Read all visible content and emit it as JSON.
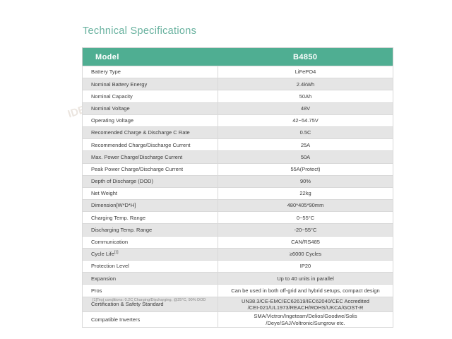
{
  "page": {
    "title": "Technical Specifications"
  },
  "colors": {
    "accent_green": "#4fae92",
    "title_teal": "#67b19e",
    "row_alt_gray": "#e5e5e5",
    "border_gray": "#d9d9d9",
    "text": "#3c3c3c"
  },
  "table": {
    "header": {
      "model_label": "Model",
      "model_value": "B4850"
    },
    "rows": [
      {
        "label": "Battery Type",
        "value": "LiFePO4"
      },
      {
        "label": "Nominal Battery Energy",
        "value": "2.4kWh"
      },
      {
        "label": "Nominal Capacity",
        "value": "50Ah"
      },
      {
        "label": "Nominal Voltage",
        "value": "48V"
      },
      {
        "label": "Operating Voltage",
        "value": "42~54.75V"
      },
      {
        "label": "Recomended Charge & Discharge C Rate",
        "value": "0.5C"
      },
      {
        "label": "Recommended Charge/Discharge Current",
        "value": "25A"
      },
      {
        "label": "Max. Power Charge/Discharge Current",
        "value": "50A"
      },
      {
        "label": "Peak Power Charge/Discharge Current",
        "value": "55A(Protect)"
      },
      {
        "label": "Depth of Discharge (DOD)",
        "value": "90%"
      },
      {
        "label": "Net Weight",
        "value": "22kg"
      },
      {
        "label": "Dimension[W*D*H]",
        "value": "480*405*90mm"
      },
      {
        "label": "Charging Temp. Range",
        "value": "0~55°C"
      },
      {
        "label": "Discharging Temp. Range",
        "value": "-20~55°C"
      },
      {
        "label": "Communication",
        "value": "CAN/RS485"
      },
      {
        "label": "Cycle Life",
        "sup": "[1]",
        "value": "≥6000 Cycles"
      },
      {
        "label": "Protection Level",
        "value": "IP20"
      },
      {
        "label": "Expansion",
        "value": "Up to 40 units in parallel"
      },
      {
        "label": "Pros",
        "value": "Can be used in both off-grid and hybrid setups, compact design"
      },
      {
        "label": "Certification & Safety Standard",
        "value": "UN38.3/CE-EMC/EC62619/IEC62040/CEC Accredited\n/CEI-021/UL1973/REACH/ROHS/UKCA/GOST-R"
      },
      {
        "label": "Compatible Inverters",
        "value": "SMA/Victron/Ingeteam/Delios/Goodwe/Solis\n/Deye/SAJ/Voltronic/Sungrow etc."
      }
    ],
    "footnote": "[1]Test conditions: 0.2C Charging/Discharging, @25°C, 90% DOD"
  },
  "watermarks": {
    "wm1": "IDE",
    "wm2": "Dec",
    "wm3": "Sewell 2",
    "wm4": "AM 市场",
    "wm5": "Rachael A"
  }
}
